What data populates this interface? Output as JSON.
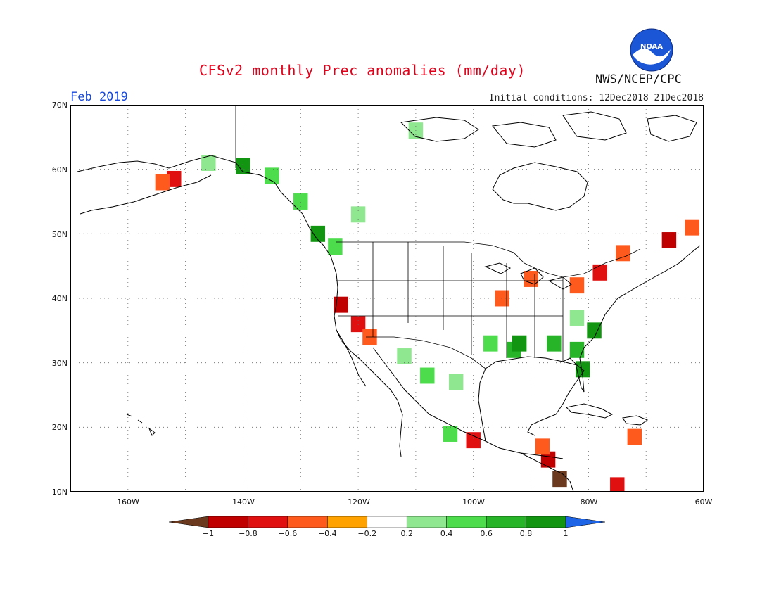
{
  "header": {
    "title": "CFSv2 monthly Prec anomalies (mm/day)",
    "month": "Feb 2019",
    "initial_conditions": "Initial conditions: 12Dec2018–21Dec2018",
    "agency": "NWS/NCEP/CPC",
    "logo_text": "NOAA"
  },
  "map": {
    "lon_range": [
      -170,
      -60
    ],
    "lat_range": [
      10,
      70
    ],
    "lat_labels": [
      "70N",
      "60N",
      "50N",
      "40N",
      "30N",
      "20N",
      "10N"
    ],
    "lon_labels": [
      "160W",
      "140W",
      "120W",
      "100W",
      "80W",
      "60W"
    ],
    "gridlines": true
  },
  "colorbar": {
    "ticks": [
      "−1",
      "−0.8",
      "−0.6",
      "−0.4",
      "−0.2",
      "0.2",
      "0.4",
      "0.6",
      "0.8",
      "1"
    ],
    "colors": [
      "#6b3a1e",
      "#c00000",
      "#e01010",
      "#ff5a1e",
      "#ffa200",
      "#ffffff",
      "#8fe88f",
      "#4cdc4c",
      "#28b428",
      "#129612",
      "#1e64e6"
    ]
  },
  "chart_data": {
    "type": "heatmap",
    "title": "CFSv2 monthly Prec anomalies (mm/day)",
    "xlabel": "",
    "ylabel": "",
    "x_range": [
      -170,
      -60
    ],
    "y_range": [
      10,
      70
    ],
    "color_scale": [
      -1,
      -0.8,
      -0.6,
      -0.4,
      -0.2,
      0.2,
      0.4,
      0.6,
      0.8,
      1
    ],
    "cells": [
      {
        "lon": -152,
        "lat": 58.5,
        "v": -0.6
      },
      {
        "lon": -154,
        "lat": 58,
        "v": -0.4
      },
      {
        "lon": -146,
        "lat": 61,
        "v": 0.3
      },
      {
        "lon": -140,
        "lat": 60.5,
        "v": 0.9
      },
      {
        "lon": -135,
        "lat": 59,
        "v": 0.6
      },
      {
        "lon": -130,
        "lat": 55,
        "v": 0.5
      },
      {
        "lon": -127,
        "lat": 50,
        "v": 1.0
      },
      {
        "lon": -124,
        "lat": 48,
        "v": 0.6
      },
      {
        "lon": -120,
        "lat": 53,
        "v": 0.4
      },
      {
        "lon": -110,
        "lat": 66,
        "v": 0.3
      },
      {
        "lon": -123,
        "lat": 39,
        "v": -0.8
      },
      {
        "lon": -120,
        "lat": 36,
        "v": -0.6
      },
      {
        "lon": -118,
        "lat": 34,
        "v": -0.5
      },
      {
        "lon": -112,
        "lat": 31,
        "v": 0.3
      },
      {
        "lon": -108,
        "lat": 28,
        "v": 0.5
      },
      {
        "lon": -103,
        "lat": 27,
        "v": 0.4
      },
      {
        "lon": -104,
        "lat": 19,
        "v": 0.5
      },
      {
        "lon": -100,
        "lat": 18,
        "v": -0.6
      },
      {
        "lon": -97,
        "lat": 33,
        "v": 0.6
      },
      {
        "lon": -93,
        "lat": 32,
        "v": 0.8
      },
      {
        "lon": -92,
        "lat": 33,
        "v": 1.0
      },
      {
        "lon": -86,
        "lat": 33,
        "v": 0.7
      },
      {
        "lon": -82,
        "lat": 32,
        "v": 0.8
      },
      {
        "lon": -81,
        "lat": 29,
        "v": 1.0
      },
      {
        "lon": -79,
        "lat": 35,
        "v": 1.0
      },
      {
        "lon": -82,
        "lat": 37,
        "v": 0.4
      },
      {
        "lon": -95,
        "lat": 40,
        "v": -0.4
      },
      {
        "lon": -90,
        "lat": 43,
        "v": -0.4
      },
      {
        "lon": -82,
        "lat": 42,
        "v": -0.5
      },
      {
        "lon": -78,
        "lat": 44,
        "v": -0.6
      },
      {
        "lon": -74,
        "lat": 47,
        "v": -0.4
      },
      {
        "lon": -66,
        "lat": 49,
        "v": -0.8
      },
      {
        "lon": -62,
        "lat": 51,
        "v": -0.5
      },
      {
        "lon": -87,
        "lat": 15,
        "v": -0.8
      },
      {
        "lon": -85,
        "lat": 12,
        "v": -1.0
      },
      {
        "lon": -88,
        "lat": 17,
        "v": -0.4
      },
      {
        "lon": -72,
        "lat": 18.5,
        "v": -0.5
      },
      {
        "lon": -75,
        "lat": 11,
        "v": -0.6
      }
    ]
  }
}
